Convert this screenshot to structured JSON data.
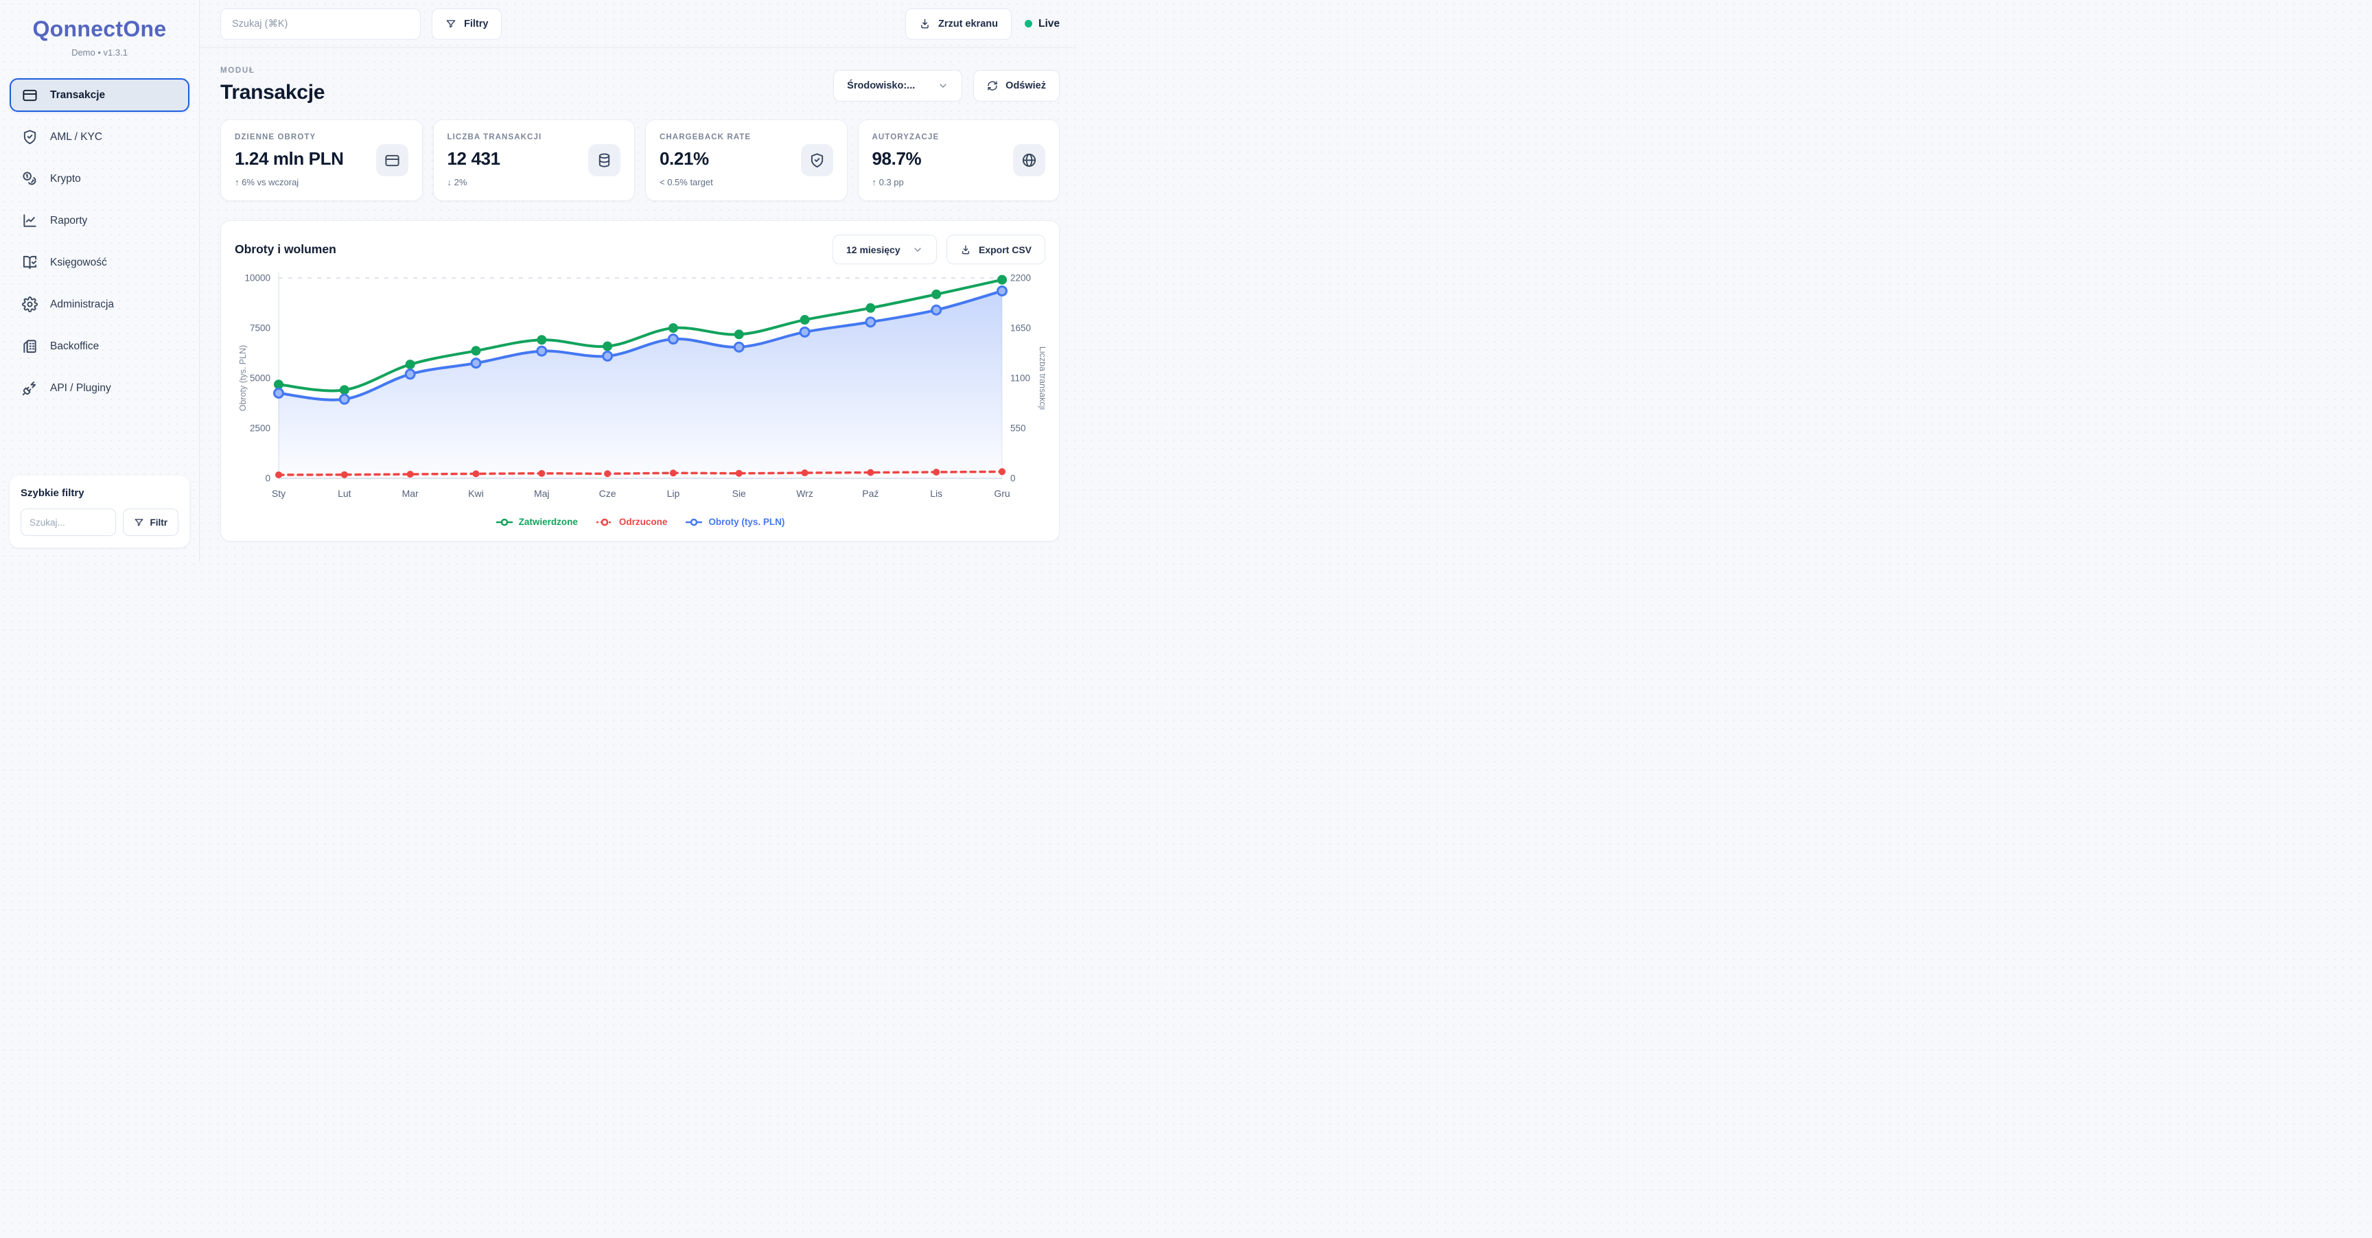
{
  "brand": {
    "name": "QonnectOne",
    "subtitle": "Demo • v1.3.1"
  },
  "topbar": {
    "search_placeholder": "Szukaj (⌘K)",
    "filters_label": "Filtry",
    "screenshot_label": "Zrzut ekranu",
    "live_label": "Live",
    "live_color": "#10b981"
  },
  "sidebar": {
    "items": [
      {
        "label": "Transakcje",
        "icon": "credit-card-icon",
        "active": true
      },
      {
        "label": "AML / KYC",
        "icon": "shield-check-icon",
        "active": false
      },
      {
        "label": "Krypto",
        "icon": "coins-icon",
        "active": false
      },
      {
        "label": "Raporty",
        "icon": "line-chart-icon",
        "active": false
      },
      {
        "label": "Księgowość",
        "icon": "book-check-icon",
        "active": false
      },
      {
        "label": "Administracja",
        "icon": "gear-icon",
        "active": false
      },
      {
        "label": "Backoffice",
        "icon": "building-icon",
        "active": false
      },
      {
        "label": "API / Pluginy",
        "icon": "plug-icon",
        "active": false
      }
    ],
    "quick_filters": {
      "title": "Szybkie filtry",
      "search_placeholder": "Szukaj...",
      "filter_label": "Filtr",
      "filter_icon": "funnel-icon"
    }
  },
  "header": {
    "eyebrow": "MODUŁ",
    "title": "Transakcje",
    "environment_select": "Środowisko:...",
    "refresh_label": "Odśwież"
  },
  "kpis": [
    {
      "label": "DZIENNE OBROTY",
      "value": "1.24 mln PLN",
      "sub": "↑ 6% vs wczoraj",
      "icon": "credit-card-icon"
    },
    {
      "label": "LICZBA TRANSAKCJI",
      "value": "12 431",
      "sub": "↓ 2%",
      "icon": "database-icon"
    },
    {
      "label": "CHARGEBACK RATE",
      "value": "0.21%",
      "sub": "< 0.5% target",
      "icon": "shield-check-icon"
    },
    {
      "label": "AUTORYZACJE",
      "value": "98.7%",
      "sub": "↑ 0.3 pp",
      "icon": "globe-icon"
    }
  ],
  "chart": {
    "title": "Obroty i wolumen",
    "range_select": "12 miesięcy",
    "export_label": "Export CSV"
  },
  "chart_data": {
    "type": "line",
    "title": "Obroty i wolumen",
    "categories": [
      "Sty",
      "Lut",
      "Mar",
      "Kwi",
      "Maj",
      "Cze",
      "Lip",
      "Sie",
      "Wrz",
      "Paź",
      "Lis",
      "Gru"
    ],
    "series": [
      {
        "name": "Zatwierdzone",
        "axis": "right",
        "color": "#12a35c",
        "style": "solid",
        "values": [
          1030,
          970,
          1250,
          1400,
          1520,
          1450,
          1650,
          1580,
          1740,
          1870,
          2020,
          2180
        ]
      },
      {
        "name": "Odrzucone",
        "axis": "right",
        "color": "#ef4444",
        "style": "dashed",
        "values": [
          38,
          40,
          45,
          50,
          54,
          51,
          58,
          55,
          60,
          64,
          68,
          73
        ]
      },
      {
        "name": "Obroty (tys. PLN)",
        "axis": "left",
        "color": "#4478f2",
        "style": "solid",
        "area": true,
        "values": [
          4250,
          3950,
          5200,
          5750,
          6350,
          6100,
          6950,
          6550,
          7300,
          7800,
          8400,
          9350
        ]
      }
    ],
    "left_axis": {
      "label": "Obroty (tys. PLN)",
      "min": 0,
      "max": 10000,
      "ticks": [
        0,
        2500,
        5000,
        7500,
        10000
      ]
    },
    "right_axis": {
      "label": "Liczba transakcji",
      "min": 0,
      "max": 2200,
      "ticks": [
        0,
        550,
        1100,
        1650,
        2200
      ]
    },
    "grid": "top-line-only",
    "legend_position": "bottom"
  }
}
